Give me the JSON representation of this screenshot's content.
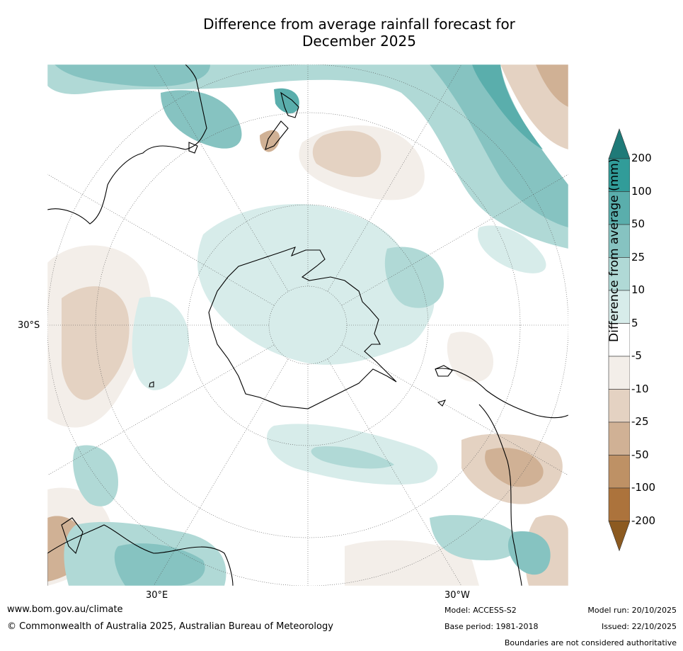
{
  "title_line1": "Difference from average rainfall forecast for",
  "title_line2": "December 2025",
  "axis": {
    "lat_label": "30°S",
    "lon_left": "30°E",
    "lon_right": "30°W"
  },
  "colorbar": {
    "title": "Difference from average (mm)",
    "ticks": [
      "200",
      "100",
      "50",
      "25",
      "10",
      "5",
      "-5",
      "-10",
      "-25",
      "-50",
      "-100",
      "-200"
    ],
    "colors": [
      "#1f7a78",
      "#319c99",
      "#5aaeac",
      "#86c3c1",
      "#b0d9d6",
      "#d7ecea",
      "#ffffff",
      "#f3eee9",
      "#e4d2c2",
      "#d0b195",
      "#be9165",
      "#ac733c",
      "#8c5a20"
    ]
  },
  "footer": {
    "url": "www.bom.gov.au/climate",
    "copyright": "© Commonwealth of Australia 2025, Australian Bureau of Meteorology",
    "model": "Model: ACCESS-S2",
    "base_period": "Base period: 1981-2018",
    "model_run": "Model run: 20/10/2025",
    "issued": "Issued: 22/10/2025",
    "disclaimer": "Boundaries are not considered authoritative"
  }
}
